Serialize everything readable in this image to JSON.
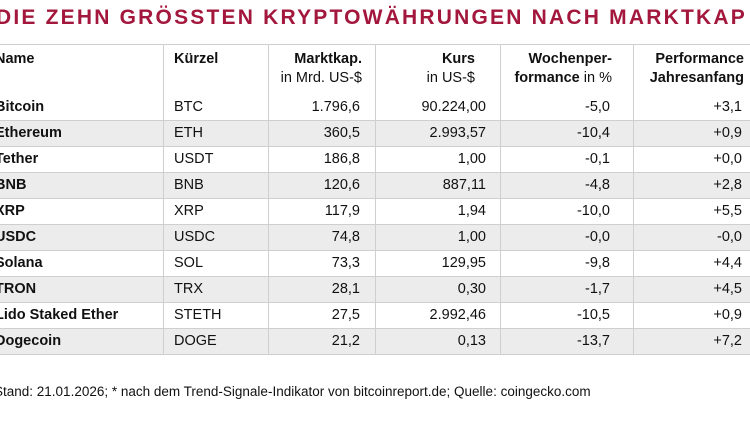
{
  "title": "DIE ZEHN GRÖSSTEN KRYPTOWÄHRUNGEN NACH MARKTKAP",
  "table": {
    "header": {
      "name": "Name",
      "symbol": "Kürzel",
      "market_cap": {
        "title": "Marktkap.",
        "unit": "in Mrd. US-$"
      },
      "price": {
        "title": "Kurs",
        "unit": "in US-$"
      },
      "week": {
        "title": "Wochenper-",
        "title2": "formance",
        "unit": "in %"
      },
      "ytd": {
        "title": "Performance",
        "title2": "Jahresanfang"
      }
    },
    "rows": [
      [
        "Bitcoin",
        "BTC",
        "1.796,6",
        "90.224,00",
        "-5,0",
        "+3,1"
      ],
      [
        "Ethereum",
        "ETH",
        "360,5",
        "2.993,57",
        "-10,4",
        "+0,9"
      ],
      [
        "Tether",
        "USDT",
        "186,8",
        "1,00",
        "-0,1",
        "+0,0"
      ],
      [
        "BNB",
        "BNB",
        "120,6",
        "887,11",
        "-4,8",
        "+2,8"
      ],
      [
        "XRP",
        "XRP",
        "117,9",
        "1,94",
        "-10,0",
        "+5,5"
      ],
      [
        "USDC",
        "USDC",
        "74,8",
        "1,00",
        "-0,0",
        "-0,0"
      ],
      [
        "Solana",
        "SOL",
        "73,3",
        "129,95",
        "-9,8",
        "+4,4"
      ],
      [
        "TRON",
        "TRX",
        "28,1",
        "0,30",
        "-1,7",
        "+4,5"
      ],
      [
        "Lido Staked Ether",
        "STETH",
        "27,5",
        "2.992,46",
        "-10,5",
        "+0,9"
      ],
      [
        "Dogecoin",
        "DOGE",
        "21,2",
        "0,13",
        "-13,7",
        "+7,2"
      ]
    ]
  },
  "footnote": "Stand: 21.01.2026; * nach dem Trend-Signale-Indikator von bitcoinreport.de; Quelle: coingecko.com"
}
